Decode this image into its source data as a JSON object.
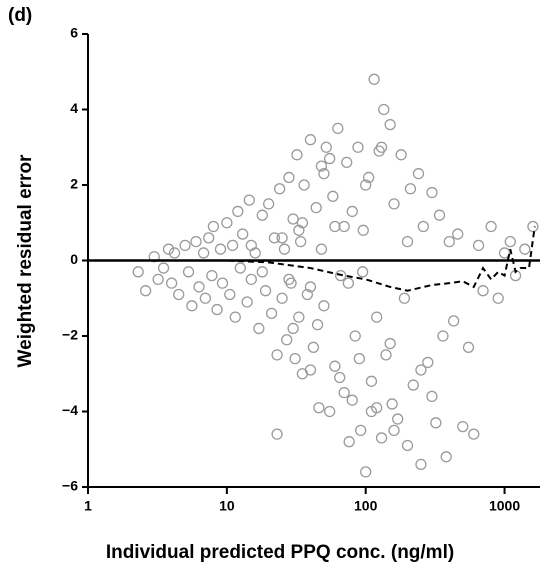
{
  "chart_data": {
    "type": "scatter",
    "panel_label": "(d)",
    "xlabel": "Individual predicted PPQ conc. (ng/ml)",
    "ylabel": "Weighted residual error",
    "xscale": "log",
    "xlim": [
      1,
      1800
    ],
    "ylim": [
      -6,
      6
    ],
    "xticks": [
      1,
      10,
      100,
      1000
    ],
    "yticks": [
      {
        "value": -6,
        "label": "−6"
      },
      {
        "value": -4,
        "label": "−4"
      },
      {
        "value": -2,
        "label": "−2"
      },
      0,
      2,
      4,
      6
    ],
    "marker_color": "#9a9a9a",
    "points": {
      "x": [
        2.3,
        2.6,
        3,
        3.2,
        3.5,
        3.8,
        4,
        4.2,
        4.5,
        5,
        5.3,
        5.6,
        6,
        6.3,
        6.8,
        7,
        7.4,
        7.8,
        8,
        8.5,
        9,
        9.3,
        10,
        10.5,
        11,
        11.5,
        12,
        12.5,
        13,
        14,
        14.5,
        15,
        16,
        17,
        18,
        19,
        20,
        21,
        22,
        23,
        24,
        25,
        26,
        27,
        28,
        29,
        30,
        31,
        32,
        33,
        34,
        35,
        36,
        38,
        40,
        42,
        44,
        46,
        48,
        50,
        52,
        55,
        58,
        60,
        63,
        66,
        70,
        73,
        76,
        80,
        84,
        88,
        92,
        96,
        100,
        105,
        110,
        115,
        120,
        125,
        130,
        135,
        140,
        150,
        155,
        160,
        170,
        180,
        190,
        200,
        210,
        220,
        240,
        250,
        260,
        280,
        300,
        320,
        340,
        360,
        380,
        400,
        430,
        460,
        500,
        550,
        600,
        650,
        700,
        800,
        900,
        1000,
        1100,
        1200,
        1400,
        1600,
        23,
        30,
        40,
        55,
        65,
        80,
        100,
        110,
        130,
        160,
        35,
        45,
        50,
        70,
        90,
        120,
        150,
        200,
        250,
        300,
        15,
        18,
        25,
        28,
        33,
        40,
        48,
        60,
        75,
        95
      ],
      "y": [
        -0.3,
        -0.8,
        0.1,
        -0.5,
        -0.2,
        0.3,
        -0.6,
        0.2,
        -0.9,
        0.4,
        -0.3,
        -1.2,
        0.5,
        -0.7,
        0.2,
        -1.0,
        0.6,
        -0.4,
        0.9,
        -1.3,
        0.3,
        -0.6,
        1.0,
        -0.9,
        0.4,
        -1.5,
        1.3,
        -0.2,
        0.7,
        -1.1,
        1.6,
        -0.5,
        0.2,
        -1.8,
        1.2,
        -0.8,
        1.5,
        -1.4,
        0.6,
        -4.6,
        1.9,
        -1.0,
        0.3,
        -2.1,
        2.2,
        -0.6,
        1.1,
        -2.6,
        2.8,
        -1.5,
        0.5,
        -3.0,
        2.0,
        -0.9,
        3.2,
        -2.3,
        1.4,
        -3.9,
        2.5,
        -1.2,
        3.0,
        -4.0,
        1.7,
        -2.8,
        3.5,
        -0.4,
        -3.5,
        2.6,
        -4.8,
        1.3,
        -2.0,
        3.0,
        -4.5,
        0.8,
        -5.6,
        2.2,
        -3.2,
        4.8,
        -1.5,
        2.9,
        -4.7,
        4.0,
        -2.5,
        3.6,
        -3.8,
        1.5,
        -4.2,
        2.8,
        -1.0,
        -4.9,
        1.9,
        -3.3,
        2.3,
        -5.4,
        0.9,
        -2.7,
        1.8,
        -4.3,
        1.2,
        -2.0,
        -5.2,
        0.5,
        -1.6,
        0.7,
        -4.4,
        -2.3,
        -4.6,
        0.4,
        -0.8,
        0.9,
        -1.0,
        0.2,
        0.5,
        -0.4,
        0.3,
        0.9,
        -2.5,
        -1.8,
        -2.9,
        2.7,
        -3.1,
        -3.7,
        2.0,
        -4.0,
        3.0,
        -4.5,
        1.0,
        -1.7,
        2.3,
        0.9,
        -2.6,
        -3.9,
        -2.2,
        0.5,
        -2.9,
        -3.6,
        0.4,
        -0.3,
        0.6,
        -0.5,
        0.8,
        -0.7,
        0.3,
        0.9,
        -0.6,
        -0.3
      ]
    },
    "trend": {
      "x": [
        1,
        5,
        10,
        20,
        40,
        70,
        100,
        150,
        200,
        300,
        400,
        500,
        600,
        700,
        800,
        900,
        1000,
        1100,
        1200,
        1300,
        1500,
        1650
      ],
      "y": [
        0,
        0,
        0,
        -0.05,
        -0.2,
        -0.4,
        -0.5,
        -0.7,
        -0.8,
        -0.65,
        -0.6,
        -0.55,
        -0.7,
        -0.2,
        -0.5,
        -0.3,
        -0.4,
        0.3,
        -0.3,
        -0.2,
        -0.2,
        0.9
      ]
    },
    "hline": 0
  }
}
